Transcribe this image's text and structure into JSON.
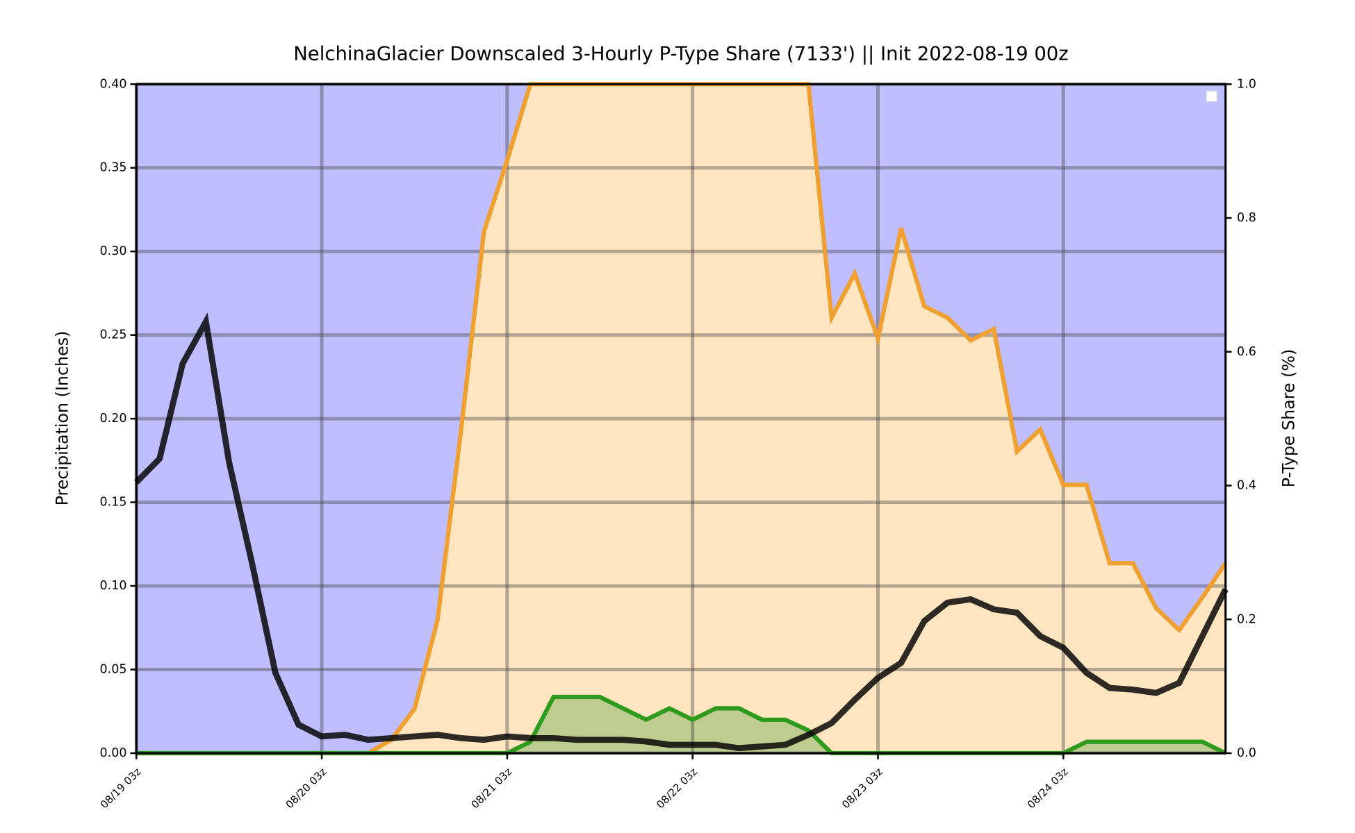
{
  "chart_data": {
    "type": "area",
    "title": "NelchinaGlacier Downscaled 3-Hourly P-Type Share (7133') || Init 2022-08-19 00z",
    "ylabel": "Precipitation (Inches)",
    "y2label": "P-Type Share (%)",
    "x": [
      0,
      3,
      6,
      9,
      12,
      15,
      18,
      21,
      24,
      27,
      30,
      33,
      36,
      39,
      42,
      45,
      48,
      51,
      54,
      57,
      60,
      63,
      66,
      69,
      72,
      75,
      78,
      81,
      84,
      87,
      90,
      93,
      96,
      99,
      102,
      105,
      108,
      111,
      114,
      117,
      120,
      123,
      126,
      129,
      132,
      135,
      138,
      141
    ],
    "xlim": [
      0,
      141
    ],
    "xticks": [
      {
        "value": 0,
        "label": "08/19 03z"
      },
      {
        "value": 24,
        "label": "08/20 03z"
      },
      {
        "value": 48,
        "label": "08/21 03z"
      },
      {
        "value": 72,
        "label": "08/22 03z"
      },
      {
        "value": 96,
        "label": "08/23 03z"
      },
      {
        "value": 120,
        "label": "08/24 03z"
      }
    ],
    "ylim": [
      0,
      0.4
    ],
    "yticks": [
      {
        "value": 0,
        "label": "0.00"
      },
      {
        "value": 0.05,
        "label": "0.05"
      },
      {
        "value": 0.1,
        "label": "0.10"
      },
      {
        "value": 0.15,
        "label": "0.15"
      },
      {
        "value": 0.2,
        "label": "0.20"
      },
      {
        "value": 0.25,
        "label": "0.25"
      },
      {
        "value": 0.3,
        "label": "0.30"
      },
      {
        "value": 0.35,
        "label": "0.35"
      },
      {
        "value": 0.4,
        "label": "0.40"
      }
    ],
    "y2lim": [
      0,
      1
    ],
    "y2ticks": [
      {
        "value": 0,
        "label": "0.0"
      },
      0.2,
      0.4,
      0.6,
      0.8,
      {
        "value": 1,
        "label": "1.0"
      }
    ],
    "grid": true,
    "legend": "upper right",
    "series": [
      {
        "type": "area",
        "axis": "y2",
        "stack": "share",
        "color": "#ffe6c0",
        "line_color": "#f0a030",
        "values": [
          0,
          0,
          0,
          0,
          0,
          0,
          0,
          0,
          0,
          0,
          0,
          0.02,
          0.066,
          0.2,
          0.48,
          0.78,
          0.886,
          1,
          1,
          1,
          1,
          1,
          1,
          1,
          1,
          1,
          1,
          1,
          1,
          1,
          0.651,
          0.717,
          0.62,
          0.785,
          0.668,
          0.651,
          0.617,
          0.634,
          0.451,
          0.484,
          0.401,
          0.401,
          0.284,
          0.284,
          0.217,
          0.184,
          0.233,
          0.284
        ]
      },
      {
        "type": "area",
        "axis": "y2",
        "stack": "share",
        "color": "#bfbfff",
        "values": [
          1,
          1,
          1,
          1,
          1,
          1,
          1,
          1,
          1,
          1,
          1,
          0.98,
          0.934,
          0.8,
          0.52,
          0.22,
          0.114,
          0,
          0,
          0,
          0,
          0,
          0,
          0,
          0,
          0,
          0,
          0,
          0,
          0,
          0.349,
          0.283,
          0.38,
          0.215,
          0.332,
          0.349,
          0.383,
          0.366,
          0.549,
          0.516,
          0.599,
          0.599,
          0.716,
          0.716,
          0.783,
          0.816,
          0.767,
          0.716
        ]
      },
      {
        "type": "area",
        "axis": "y2",
        "color": "rgba(0,128,0,0.25)",
        "line_color": "#2e9a1e",
        "values": [
          0,
          0,
          0,
          0,
          0,
          0,
          0,
          0,
          0,
          0,
          0,
          0,
          0,
          0,
          0,
          0,
          0,
          0.017,
          0.084,
          0.084,
          0.084,
          0.067,
          0.05,
          0.067,
          0.05,
          0.067,
          0.067,
          0.05,
          0.05,
          0.034,
          0,
          0,
          0,
          0,
          0,
          0,
          0,
          0,
          0,
          0,
          0,
          0.017,
          0.017,
          0.017,
          0.017,
          0.017,
          0.017,
          0
        ]
      },
      {
        "type": "line",
        "axis": "y",
        "color": "rgba(0,0,0,0.82)",
        "values": [
          0.162,
          0.176,
          0.233,
          0.258,
          0.174,
          0.113,
          0.048,
          0.017,
          0.01,
          0.011,
          0.008,
          0.009,
          0.01,
          0.011,
          0.009,
          0.008,
          0.01,
          0.009,
          0.009,
          0.008,
          0.008,
          0.008,
          0.007,
          0.005,
          0.005,
          0.005,
          0.003,
          0.004,
          0.005,
          0.011,
          0.018,
          0.032,
          0.045,
          0.054,
          0.079,
          0.09,
          0.092,
          0.086,
          0.084,
          0.07,
          0.063,
          0.048,
          0.039,
          0.038,
          0.036,
          0.042,
          0.07,
          0.098
        ]
      }
    ]
  }
}
